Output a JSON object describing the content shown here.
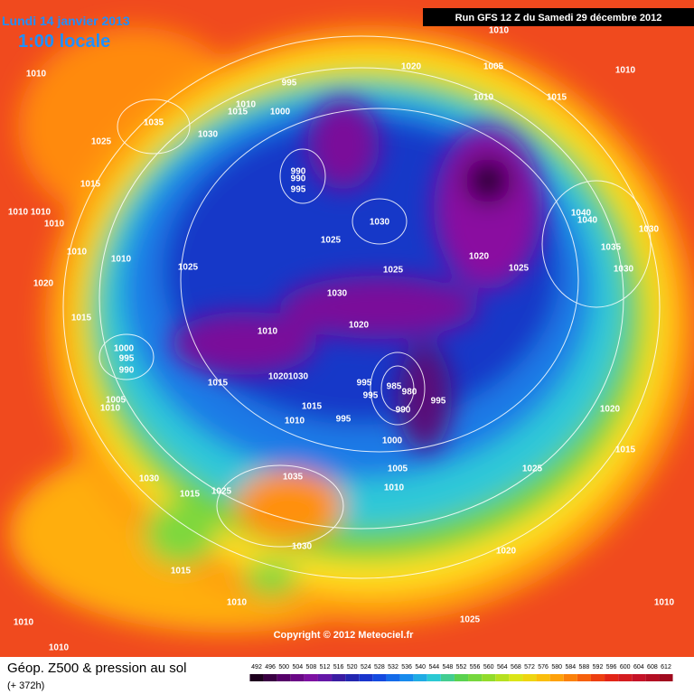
{
  "header": {
    "date": "Lundi 14 janvier 2013",
    "time": "1:00 locale",
    "run": "Run GFS 12 Z du Samedi 29 décembre 2012"
  },
  "isobar_labels": [
    1010,
    1020,
    1005,
    1010,
    1010,
    995,
    1010,
    1015,
    1035,
    1010,
    1015,
    1000,
    1030,
    1025,
    990,
    990,
    995,
    1015,
    1010,
    1010,
    1010,
    1030,
    1040,
    1040,
    1030,
    1025,
    1035,
    1010,
    1010,
    1025,
    1020,
    1025,
    1025,
    1030,
    1020,
    1030,
    1015,
    1020,
    1010,
    1000,
    995,
    990,
    1015,
    1020,
    1030,
    995,
    995,
    985,
    980,
    995,
    1015,
    1005,
    1010,
    990,
    1020,
    995,
    1010,
    1000,
    1015,
    1005,
    1025,
    1030,
    1035,
    1010,
    1015,
    1025,
    1030,
    1020,
    1015,
    1010,
    1010,
    1025,
    1010,
    1010
  ],
  "copyright": "Copyright © 2012 Meteociel.fr",
  "legend": {
    "title": "Géop. Z500 & pression au sol",
    "lead": "(+ 372h)",
    "scale": [
      492,
      496,
      500,
      504,
      508,
      512,
      516,
      520,
      524,
      528,
      532,
      536,
      540,
      544,
      548,
      552,
      556,
      560,
      564,
      568,
      572,
      576,
      580,
      584,
      588,
      592,
      596,
      600,
      604,
      608,
      612
    ]
  }
}
